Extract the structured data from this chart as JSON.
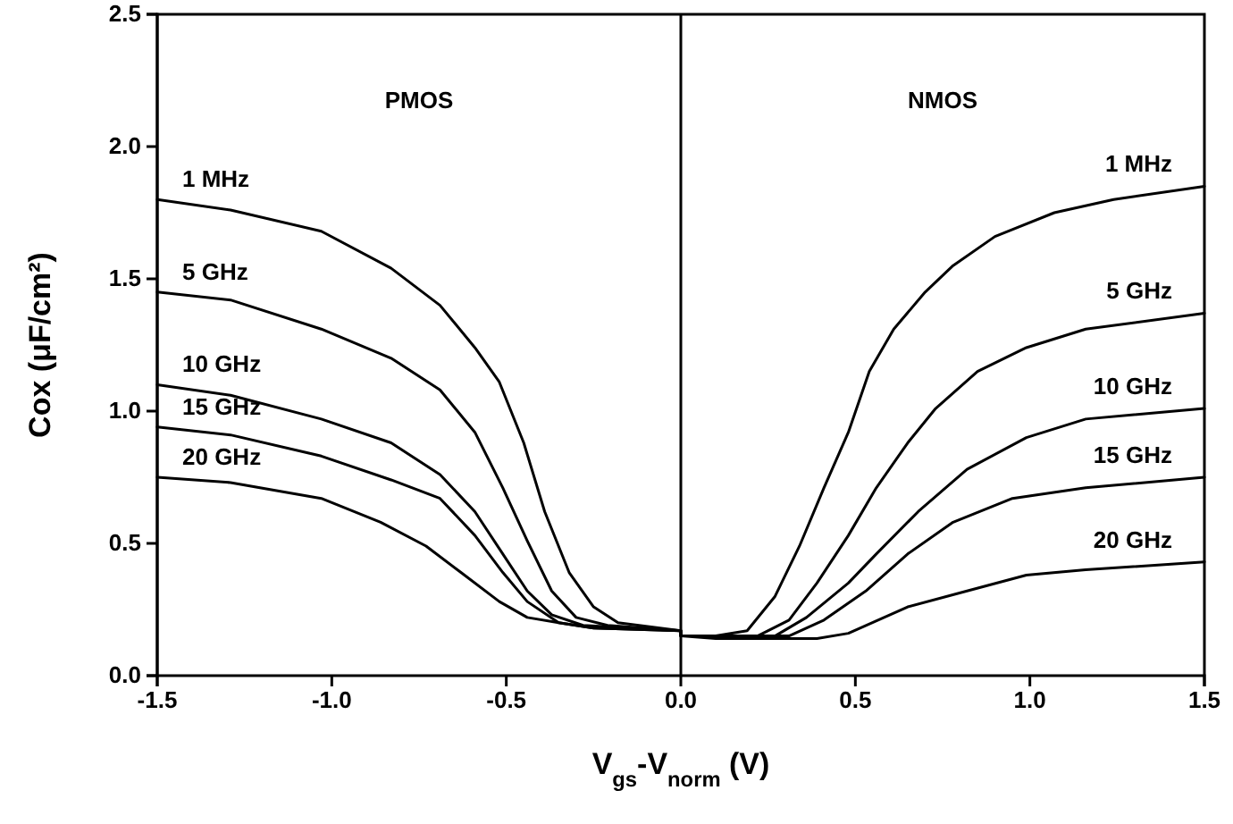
{
  "chart_data": {
    "type": "line",
    "xlabel": "V$_{gs}$-V$_{norm}$ (V)",
    "ylabel": "Cox (μF/cm²)",
    "xlim": [
      -1.5,
      1.5
    ],
    "ylim": [
      0,
      2.5
    ],
    "xticks": [
      {
        "value": -1.5,
        "label": "-1.5"
      },
      {
        "value": -1,
        "label": "-1.0"
      },
      {
        "value": -0.5,
        "label": "-0.5"
      },
      {
        "value": 0,
        "label": "0.0"
      },
      {
        "value": 0.5,
        "label": "0.5"
      },
      {
        "value": 1,
        "label": "1.0"
      },
      {
        "value": 1.5,
        "label": "1.5"
      }
    ],
    "yticks": [
      {
        "value": 0,
        "label": "0.0"
      },
      {
        "value": 0.5,
        "label": "0.5"
      },
      {
        "value": 1,
        "label": "1.0"
      },
      {
        "value": 1.5,
        "label": "1.5"
      },
      {
        "value": 2,
        "label": "2.0"
      },
      {
        "value": 2.5,
        "label": "2.5"
      }
    ],
    "grid": false,
    "marker": "none",
    "line_style": "solid",
    "ref_lines": [
      {
        "axis": "x",
        "value": 0,
        "label": null,
        "color": "#000000"
      }
    ],
    "annotations": [
      "PMOS",
      "NMOS"
    ],
    "series": [
      {
        "name": "1 MHz",
        "color": "#000000",
        "x": [
          -1.5,
          -1.29,
          -1.03,
          -0.83,
          -0.69,
          -0.59,
          -0.52,
          -0.45,
          -0.39,
          -0.32,
          -0.25,
          -0.18,
          0,
          0,
          0.1,
          0.19,
          0.27,
          0.34,
          0.41,
          0.48,
          0.54,
          0.61,
          0.7,
          0.78,
          0.9,
          1.07,
          1.24,
          1.5
        ],
        "values": [
          1.8,
          1.76,
          1.68,
          1.54,
          1.4,
          1.24,
          1.11,
          0.88,
          0.62,
          0.39,
          0.26,
          0.2,
          0.17,
          0.15,
          0.15,
          0.17,
          0.3,
          0.49,
          0.71,
          0.92,
          1.15,
          1.31,
          1.45,
          1.55,
          1.66,
          1.75,
          1.8,
          1.85
        ]
      },
      {
        "name": "5 GHz",
        "color": "#000000",
        "x": [
          -1.5,
          -1.29,
          -1.03,
          -0.83,
          -0.69,
          -0.59,
          -0.51,
          -0.44,
          -0.37,
          -0.3,
          -0.21,
          0,
          0,
          0.1,
          0.22,
          0.31,
          0.39,
          0.48,
          0.56,
          0.65,
          0.73,
          0.85,
          0.99,
          1.16,
          1.5
        ],
        "values": [
          1.45,
          1.42,
          1.31,
          1.2,
          1.08,
          0.92,
          0.71,
          0.51,
          0.32,
          0.22,
          0.19,
          0.17,
          0.15,
          0.15,
          0.15,
          0.21,
          0.35,
          0.53,
          0.71,
          0.88,
          1.01,
          1.15,
          1.24,
          1.31,
          1.37
        ]
      },
      {
        "name": "10 GHz",
        "color": "#000000",
        "x": [
          -1.5,
          -1.29,
          -1.03,
          -0.83,
          -0.69,
          -0.59,
          -0.51,
          -0.44,
          -0.37,
          -0.28,
          0,
          0,
          0.1,
          0.27,
          0.36,
          0.48,
          0.56,
          0.68,
          0.82,
          0.99,
          1.16,
          1.5
        ],
        "values": [
          1.1,
          1.06,
          0.97,
          0.88,
          0.76,
          0.62,
          0.46,
          0.32,
          0.23,
          0.19,
          0.17,
          0.15,
          0.15,
          0.15,
          0.22,
          0.35,
          0.46,
          0.62,
          0.78,
          0.9,
          0.97,
          1.01
        ]
      },
      {
        "name": "15 GHz",
        "color": "#000000",
        "x": [
          -1.5,
          -1.29,
          -1.03,
          -0.83,
          -0.69,
          -0.59,
          -0.51,
          -0.44,
          -0.35,
          -0.25,
          0,
          0,
          0.1,
          0.31,
          0.41,
          0.53,
          0.65,
          0.78,
          0.95,
          1.16,
          1.5
        ],
        "values": [
          0.94,
          0.91,
          0.83,
          0.74,
          0.67,
          0.53,
          0.39,
          0.28,
          0.2,
          0.18,
          0.17,
          0.15,
          0.15,
          0.15,
          0.21,
          0.32,
          0.46,
          0.58,
          0.67,
          0.71,
          0.75
        ]
      },
      {
        "name": "20 GHz",
        "color": "#000000",
        "x": [
          -1.5,
          -1.29,
          -1.03,
          -0.86,
          -0.73,
          -0.63,
          -0.52,
          -0.44,
          -0.35,
          -0.25,
          0,
          0,
          0.1,
          0.25,
          0.39,
          0.48,
          0.65,
          0.82,
          0.99,
          1.16,
          1.5
        ],
        "values": [
          0.75,
          0.73,
          0.67,
          0.58,
          0.49,
          0.39,
          0.28,
          0.22,
          0.2,
          0.18,
          0.17,
          0.15,
          0.14,
          0.14,
          0.14,
          0.16,
          0.26,
          0.32,
          0.38,
          0.4,
          0.43
        ]
      }
    ]
  }
}
